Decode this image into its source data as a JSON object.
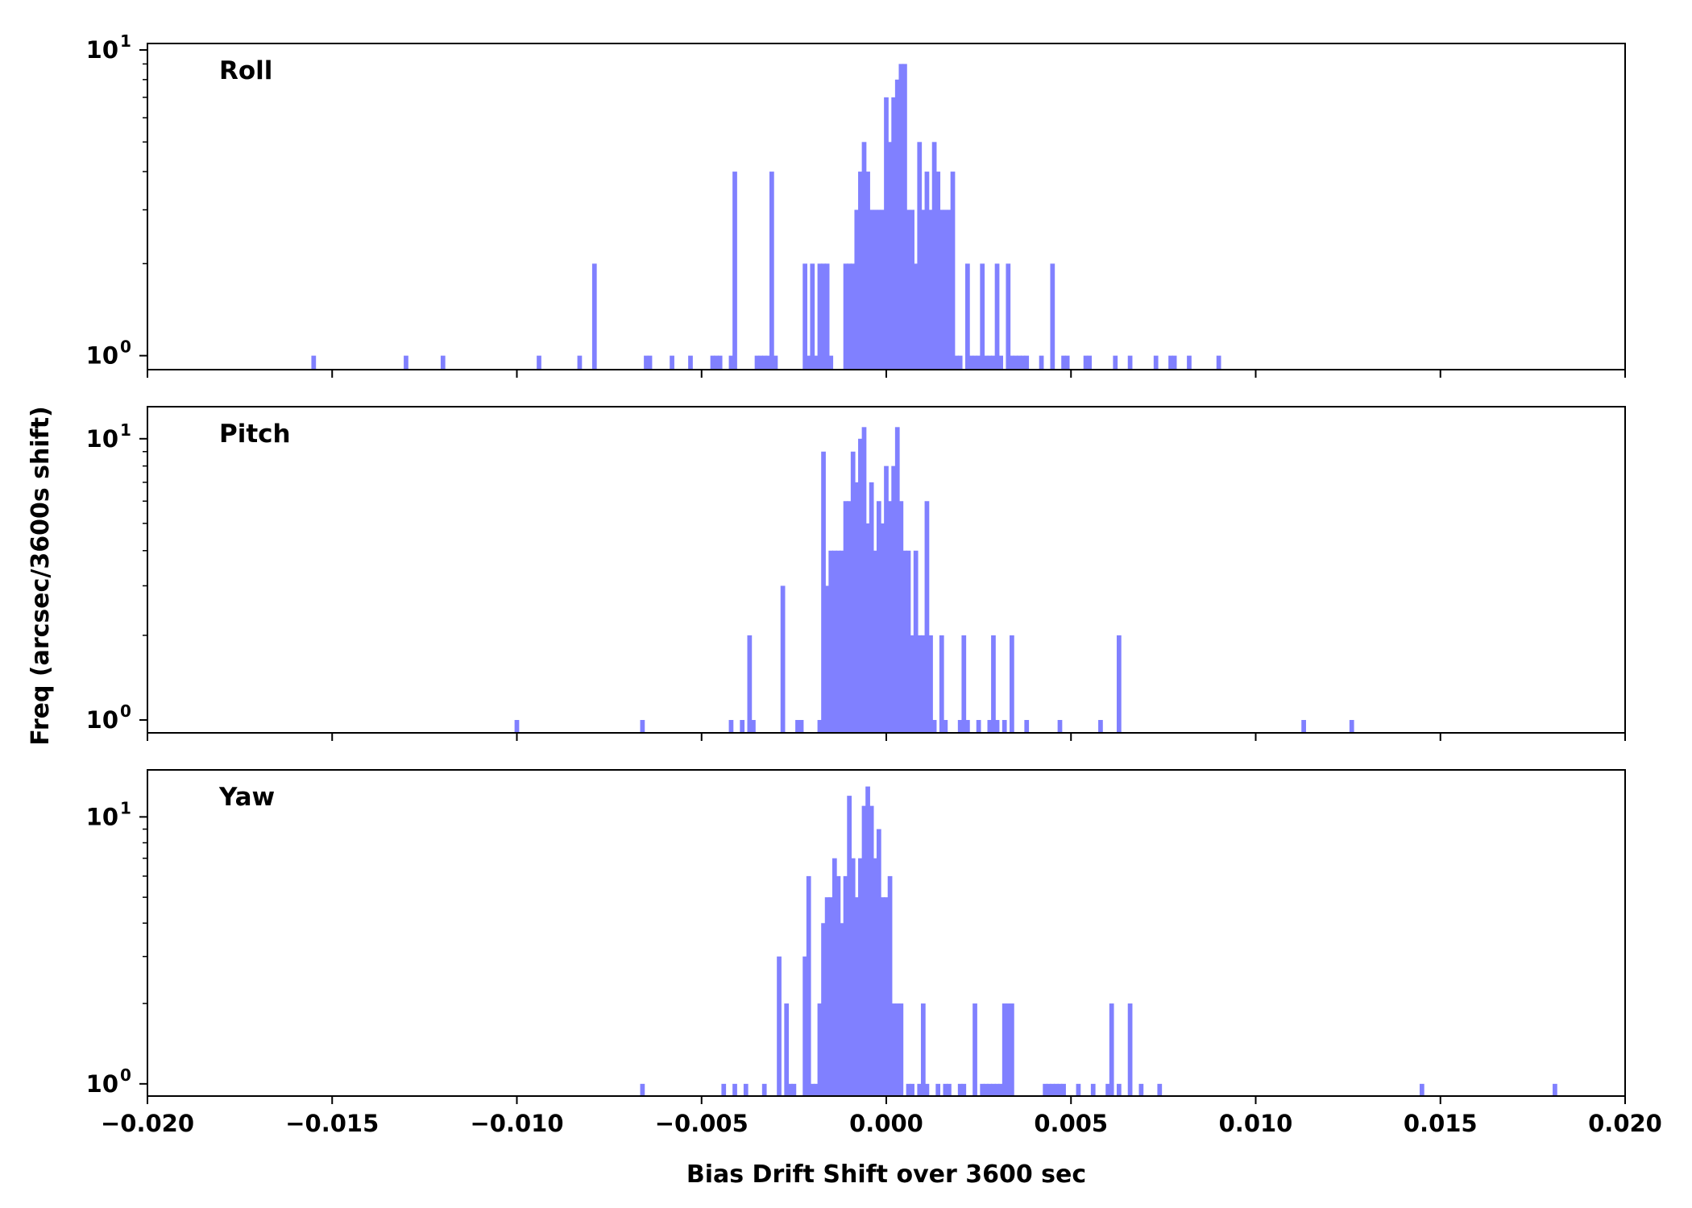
{
  "chart_data": {
    "type": "bar",
    "shared_x": {
      "label": "Bias Drift Shift over 3600 sec",
      "xlim": [
        -0.02,
        0.02
      ],
      "ticks": [
        -0.02,
        -0.015,
        -0.01,
        -0.005,
        0.0,
        0.005,
        0.01,
        0.015,
        0.02
      ],
      "tick_labels": [
        "−0.020",
        "−0.015",
        "−0.010",
        "−0.005",
        "0.000",
        "0.005",
        "0.010",
        "0.015",
        "0.020"
      ]
    },
    "shared_y": {
      "label": "Freq (arcsec/3600s shift)",
      "scale": "log"
    },
    "bar_color": "#8080ff",
    "bin_width": 0.000125,
    "panels": [
      {
        "name": "Roll",
        "ylim": [
          0.9,
          10.5
        ],
        "y_ticks": [
          {
            "value": 1,
            "base": "10",
            "exp": "0"
          },
          {
            "value": 10,
            "base": "10",
            "exp": "1"
          }
        ],
        "bins": [
          [
            -0.0155,
            1
          ],
          [
            -0.013,
            1
          ],
          [
            -0.012,
            1
          ],
          [
            -0.0094,
            1
          ],
          [
            -0.0083,
            1
          ],
          [
            -0.0079,
            2
          ],
          [
            -0.0065,
            1
          ],
          [
            -0.0064,
            1
          ],
          [
            -0.0058,
            1
          ],
          [
            -0.0053,
            1
          ],
          [
            -0.0047,
            1
          ],
          [
            -0.0046,
            1
          ],
          [
            -0.0045,
            1
          ],
          [
            -0.0042,
            1
          ],
          [
            -0.0041,
            4
          ],
          [
            -0.0035,
            1
          ],
          [
            -0.0034,
            1
          ],
          [
            -0.0033,
            1
          ],
          [
            -0.0032,
            1
          ],
          [
            -0.0031,
            4
          ],
          [
            -0.003,
            1
          ],
          [
            -0.0022,
            2
          ],
          [
            -0.0021,
            1
          ],
          [
            -0.002,
            2
          ],
          [
            -0.0019,
            1
          ],
          [
            -0.0018,
            2
          ],
          [
            -0.0017,
            2
          ],
          [
            -0.0016,
            2
          ],
          [
            -0.0015,
            1
          ],
          [
            -0.0011,
            2
          ],
          [
            -0.001,
            2
          ],
          [
            -0.0009,
            2
          ],
          [
            -0.0008,
            3
          ],
          [
            -0.0007,
            4
          ],
          [
            -0.0006,
            5
          ],
          [
            -0.0005,
            4
          ],
          [
            -0.0004,
            3
          ],
          [
            -0.0003,
            3
          ],
          [
            -0.0002,
            3
          ],
          [
            -0.0001,
            3
          ],
          [
            0.0,
            7
          ],
          [
            0.0001,
            5
          ],
          [
            0.0002,
            7
          ],
          [
            0.0003,
            8
          ],
          [
            0.0004,
            9
          ],
          [
            0.0005,
            9
          ],
          [
            0.0006,
            3
          ],
          [
            0.0007,
            3
          ],
          [
            0.0008,
            2
          ],
          [
            0.0009,
            5
          ],
          [
            0.001,
            3
          ],
          [
            0.0011,
            4
          ],
          [
            0.0012,
            3
          ],
          [
            0.0013,
            5
          ],
          [
            0.0014,
            4
          ],
          [
            0.0015,
            3
          ],
          [
            0.0016,
            3
          ],
          [
            0.0017,
            3
          ],
          [
            0.0018,
            4
          ],
          [
            0.0019,
            1
          ],
          [
            0.002,
            1
          ],
          [
            0.0022,
            2
          ],
          [
            0.0023,
            1
          ],
          [
            0.0024,
            1
          ],
          [
            0.0025,
            1
          ],
          [
            0.0026,
            2
          ],
          [
            0.0027,
            1
          ],
          [
            0.0028,
            1
          ],
          [
            0.0029,
            1
          ],
          [
            0.003,
            2
          ],
          [
            0.0031,
            1
          ],
          [
            0.0033,
            2
          ],
          [
            0.0034,
            1
          ],
          [
            0.0035,
            1
          ],
          [
            0.0036,
            1
          ],
          [
            0.0037,
            1
          ],
          [
            0.0038,
            1
          ],
          [
            0.0042,
            1
          ],
          [
            0.0045,
            2
          ],
          [
            0.0048,
            1
          ],
          [
            0.0049,
            1
          ],
          [
            0.0054,
            1
          ],
          [
            0.0055,
            1
          ],
          [
            0.0062,
            1
          ],
          [
            0.0066,
            1
          ],
          [
            0.0073,
            1
          ],
          [
            0.0077,
            1
          ],
          [
            0.0078,
            1
          ],
          [
            0.0082,
            1
          ],
          [
            0.009,
            1
          ]
        ]
      },
      {
        "name": "Pitch",
        "ylim": [
          0.9,
          13.0
        ],
        "y_ticks": [
          {
            "value": 1,
            "base": "10",
            "exp": "0"
          },
          {
            "value": 10,
            "base": "10",
            "exp": "1"
          }
        ],
        "bins": [
          [
            -0.01,
            1
          ],
          [
            -0.0066,
            1
          ],
          [
            -0.0042,
            1
          ],
          [
            -0.0039,
            1
          ],
          [
            -0.0037,
            2
          ],
          [
            -0.0036,
            1
          ],
          [
            -0.0028,
            3
          ],
          [
            -0.0024,
            1
          ],
          [
            -0.0023,
            1
          ],
          [
            -0.0018,
            1
          ],
          [
            -0.0017,
            9
          ],
          [
            -0.0016,
            3
          ],
          [
            -0.0015,
            4
          ],
          [
            -0.0014,
            4
          ],
          [
            -0.0013,
            4
          ],
          [
            -0.0012,
            4
          ],
          [
            -0.0011,
            6
          ],
          [
            -0.001,
            6
          ],
          [
            -0.0009,
            9
          ],
          [
            -0.0008,
            7
          ],
          [
            -0.0007,
            10
          ],
          [
            -0.0006,
            11
          ],
          [
            -0.0005,
            5
          ],
          [
            -0.0004,
            7
          ],
          [
            -0.0003,
            4
          ],
          [
            -0.0002,
            6
          ],
          [
            -0.0001,
            5
          ],
          [
            0.0,
            8
          ],
          [
            0.0001,
            6
          ],
          [
            0.0002,
            8
          ],
          [
            0.0003,
            11
          ],
          [
            0.0004,
            6
          ],
          [
            0.0005,
            4
          ],
          [
            0.0006,
            4
          ],
          [
            0.0007,
            2
          ],
          [
            0.0008,
            4
          ],
          [
            0.0009,
            2
          ],
          [
            0.001,
            2
          ],
          [
            0.0011,
            6
          ],
          [
            0.0012,
            2
          ],
          [
            0.0013,
            1
          ],
          [
            0.0015,
            2
          ],
          [
            0.0016,
            1
          ],
          [
            0.002,
            1
          ],
          [
            0.0021,
            2
          ],
          [
            0.0022,
            1
          ],
          [
            0.0025,
            1
          ],
          [
            0.0028,
            1
          ],
          [
            0.0029,
            2
          ],
          [
            0.003,
            1
          ],
          [
            0.0032,
            1
          ],
          [
            0.0034,
            2
          ],
          [
            0.0038,
            1
          ],
          [
            0.0047,
            1
          ],
          [
            0.0058,
            1
          ],
          [
            0.0063,
            2
          ],
          [
            0.0113,
            1
          ],
          [
            0.0126,
            1
          ]
        ]
      },
      {
        "name": "Yaw",
        "ylim": [
          0.9,
          15.0
        ],
        "y_ticks": [
          {
            "value": 1,
            "base": "10",
            "exp": "0"
          },
          {
            "value": 10,
            "base": "10",
            "exp": "1"
          }
        ],
        "bins": [
          [
            -0.0066,
            1
          ],
          [
            -0.0044,
            1
          ],
          [
            -0.0041,
            1
          ],
          [
            -0.0038,
            1
          ],
          [
            -0.0033,
            1
          ],
          [
            -0.0029,
            3
          ],
          [
            -0.0027,
            2
          ],
          [
            -0.0026,
            1
          ],
          [
            -0.0025,
            1
          ],
          [
            -0.0022,
            3
          ],
          [
            -0.0021,
            6
          ],
          [
            -0.002,
            1
          ],
          [
            -0.0019,
            1
          ],
          [
            -0.0018,
            2
          ],
          [
            -0.0017,
            4
          ],
          [
            -0.0016,
            5
          ],
          [
            -0.0015,
            5
          ],
          [
            -0.0014,
            7
          ],
          [
            -0.0013,
            6
          ],
          [
            -0.0012,
            4
          ],
          [
            -0.0011,
            6
          ],
          [
            -0.001,
            12
          ],
          [
            -0.0009,
            7
          ],
          [
            -0.0008,
            5
          ],
          [
            -0.0007,
            7
          ],
          [
            -0.0006,
            11
          ],
          [
            -0.0005,
            13
          ],
          [
            -0.0004,
            11
          ],
          [
            -0.0003,
            7
          ],
          [
            -0.0002,
            9
          ],
          [
            -0.0001,
            5
          ],
          [
            0.0,
            5
          ],
          [
            0.0001,
            6
          ],
          [
            0.0002,
            2
          ],
          [
            0.0003,
            2
          ],
          [
            0.0004,
            2
          ],
          [
            0.0006,
            1
          ],
          [
            0.0007,
            1
          ],
          [
            0.0009,
            1
          ],
          [
            0.001,
            2
          ],
          [
            0.0011,
            1
          ],
          [
            0.0014,
            1
          ],
          [
            0.0016,
            1
          ],
          [
            0.0017,
            1
          ],
          [
            0.002,
            1
          ],
          [
            0.0021,
            1
          ],
          [
            0.0024,
            2
          ],
          [
            0.0026,
            1
          ],
          [
            0.0027,
            1
          ],
          [
            0.0028,
            1
          ],
          [
            0.0029,
            1
          ],
          [
            0.003,
            1
          ],
          [
            0.0031,
            1
          ],
          [
            0.0032,
            2
          ],
          [
            0.0033,
            2
          ],
          [
            0.0034,
            2
          ],
          [
            0.0043,
            1
          ],
          [
            0.0044,
            1
          ],
          [
            0.0045,
            1
          ],
          [
            0.0046,
            1
          ],
          [
            0.0047,
            1
          ],
          [
            0.0048,
            1
          ],
          [
            0.0052,
            1
          ],
          [
            0.0056,
            1
          ],
          [
            0.006,
            1
          ],
          [
            0.0061,
            2
          ],
          [
            0.0063,
            1
          ],
          [
            0.0066,
            2
          ],
          [
            0.0069,
            1
          ],
          [
            0.0074,
            1
          ],
          [
            0.0145,
            1
          ],
          [
            0.0181,
            1
          ]
        ]
      }
    ]
  }
}
